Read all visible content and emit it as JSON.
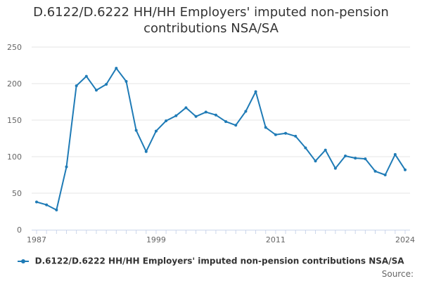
{
  "title_lines": [
    "D.6122/D.6222 HH/HH Employers' imputed non-pension",
    "contributions NSA/SA"
  ],
  "source_label": "Source:",
  "colors": {
    "series": "#1f7bb6",
    "grid": "#e6e6e6",
    "axis": "#ccd6eb",
    "tick_text": "#666666"
  },
  "chart_data": {
    "type": "line",
    "title": "D.6122/D.6222 HH/HH Employers' imputed non-pension contributions NSA/SA",
    "xlabel": "",
    "ylabel": "",
    "ylim": [
      0,
      250
    ],
    "y_ticks": [
      0,
      50,
      100,
      150,
      200,
      250
    ],
    "x_tick_labels": [
      "1987",
      "1999",
      "2011",
      "2024"
    ],
    "grid": true,
    "legend_position": "bottom",
    "x": [
      1987,
      1988,
      1989,
      1990,
      1991,
      1992,
      1993,
      1994,
      1995,
      1996,
      1997,
      1998,
      1999,
      2000,
      2001,
      2002,
      2003,
      2004,
      2005,
      2006,
      2007,
      2008,
      2009,
      2010,
      2011,
      2012,
      2013,
      2014,
      2015,
      2016,
      2017,
      2018,
      2019,
      2020,
      2021,
      2022,
      2023,
      2024
    ],
    "series": [
      {
        "name": "D.6122/D.6222 HH/HH Employers' imputed non-pension contributions NSA/SA",
        "values": [
          38,
          34,
          27,
          86,
          197,
          210,
          191,
          199,
          221,
          203,
          136,
          107,
          135,
          149,
          156,
          167,
          155,
          161,
          157,
          148,
          143,
          162,
          189,
          140,
          130,
          132,
          128,
          112,
          94,
          109,
          84,
          101,
          98,
          97,
          80,
          75,
          103,
          82
        ]
      }
    ]
  }
}
